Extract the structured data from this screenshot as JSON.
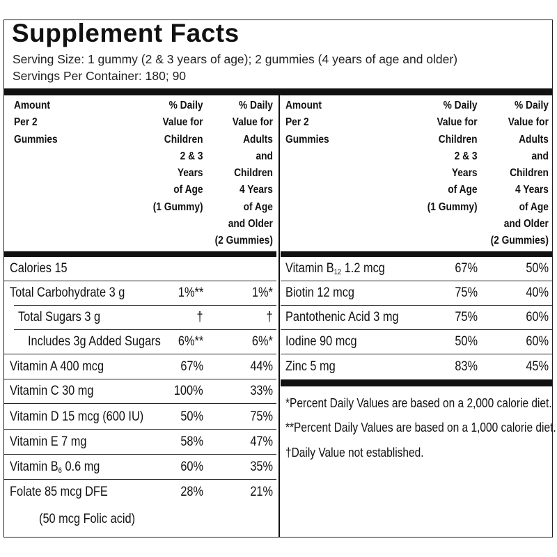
{
  "title": "Supplement Facts",
  "serving_size": "Serving Size:  1 gummy (2 & 3 years of age); 2 gummies (4 years of age and older)",
  "servings_per_container": "Servings Per Container:  180; 90",
  "headers": {
    "amount": "Amount\nPer 2\nGummies",
    "children": "% Daily\nValue for\nChildren\n2 & 3\nYears\nof Age\n(1 Gummy)",
    "adults": "% Daily\nValue for\nAdults\nand\nChildren\n4 Years\nof Age\nand Older\n(2 Gummies)"
  },
  "left_rows": [
    {
      "name": "Calories 15",
      "child": "",
      "adult": ""
    },
    {
      "name": "Total Carbohydrate 3 g",
      "child": "1%**",
      "adult": "1%*"
    },
    {
      "name": "Total Sugars 3 g",
      "child": "†",
      "adult": "†"
    },
    {
      "name": "Includes 3g Added Sugars",
      "child": "6%**",
      "adult": "6%*"
    },
    {
      "name": "Vitamin A 400 mcg",
      "child": "67%",
      "adult": "44%"
    },
    {
      "name": "Vitamin C 30 mg",
      "child": "100%",
      "adult": "33%"
    },
    {
      "name": "Vitamin D 15 mcg (600 IU)",
      "child": "50%",
      "adult": "75%"
    },
    {
      "name": "Vitamin E 7 mg",
      "child": "58%",
      "adult": "47%"
    },
    {
      "name_pre": "Vitamin B",
      "name_sub": "6",
      "name_post": " 0.6 mg",
      "child": "60%",
      "adult": "35%"
    },
    {
      "name": "Folate 85 mcg DFE",
      "child": "28%",
      "adult": "21%"
    }
  ],
  "folic_acid_note": "(50 mcg Folic acid)",
  "right_rows": [
    {
      "name_pre": "Vitamin B",
      "name_sub": "12",
      "name_post": " 1.2 mcg",
      "child": "67%",
      "adult": "50%"
    },
    {
      "name": "Biotin 12 mcg",
      "child": "75%",
      "adult": "40%"
    },
    {
      "name": "Pantothenic Acid 3 mg",
      "child": "75%",
      "adult": "60%"
    },
    {
      "name": "Iodine 90 mcg",
      "child": "50%",
      "adult": "60%"
    },
    {
      "name": "Zinc 5 mg",
      "child": "83%",
      "adult": "45%"
    }
  ],
  "footnotes": [
    "*Percent Daily Values are based on a 2,000 calorie diet.",
    "**Percent Daily Values are based on a 1,000 calorie diet.",
    "†Daily Value not established."
  ]
}
